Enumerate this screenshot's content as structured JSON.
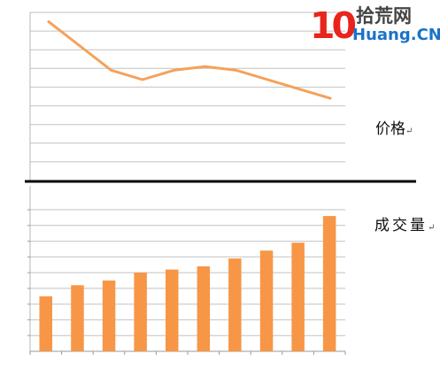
{
  "watermark": {
    "mark": "10",
    "line1": "拾荒网",
    "line2": "Huang.CN",
    "red": "#e8251c",
    "blue": "#1a73c8"
  },
  "chart_data": [
    {
      "type": "line",
      "title": "",
      "label": "价格",
      "label_suffix": "↵",
      "color": "#f5a15a",
      "x": [
        1,
        2,
        3,
        4,
        5,
        6,
        7,
        8,
        9,
        10
      ],
      "values": [
        95,
        82,
        69,
        64,
        69,
        71,
        69,
        64,
        59,
        54
      ],
      "ylim": [
        10,
        100
      ],
      "grid": true,
      "tick_labels_visible": false
    },
    {
      "type": "bar",
      "title": "",
      "label": "成交量",
      "label_suffix": "↵",
      "color": "#f79646",
      "categories": [
        "1",
        "2",
        "3",
        "4",
        "5",
        "6",
        "7",
        "8",
        "9",
        "10"
      ],
      "values": [
        35,
        42,
        45,
        50,
        52,
        54,
        59,
        64,
        69,
        86
      ],
      "ylim": [
        0,
        90
      ],
      "grid": true,
      "tick_labels_visible": false
    }
  ]
}
